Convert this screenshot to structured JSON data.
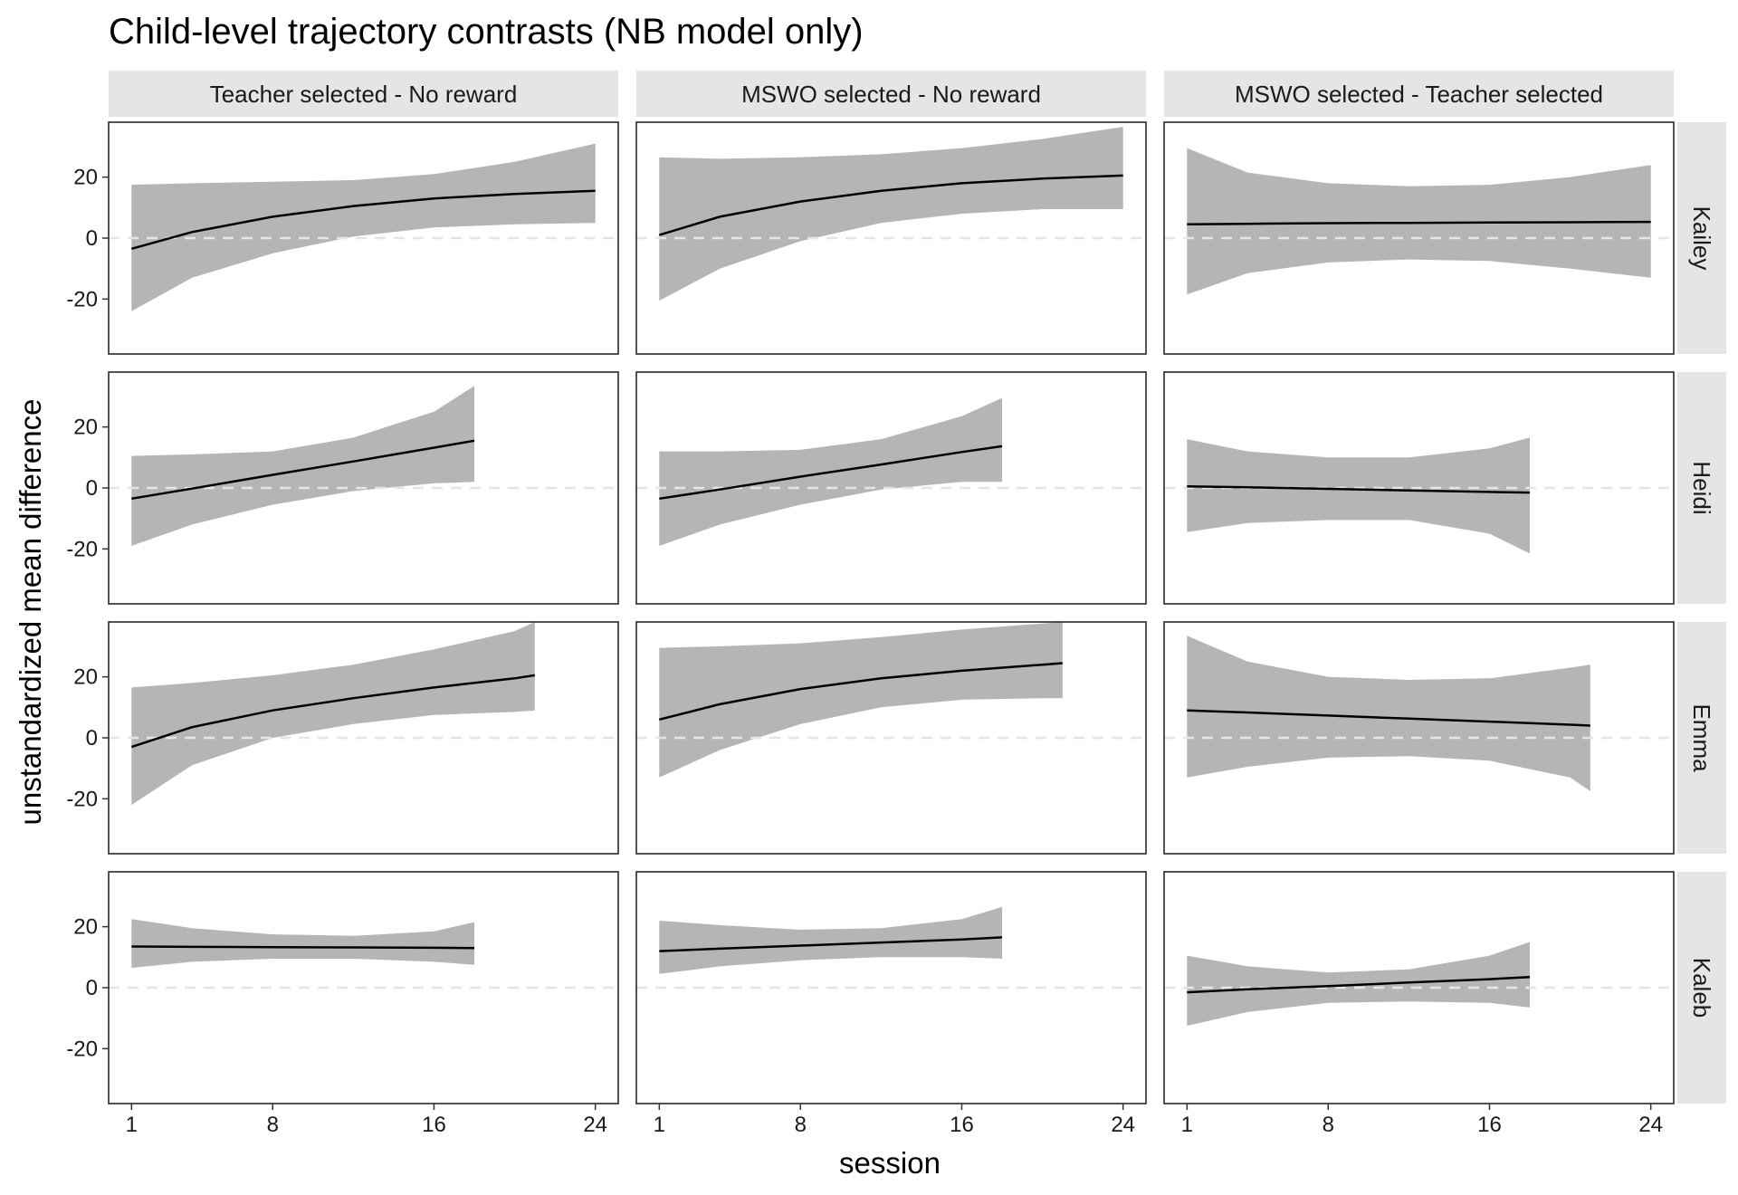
{
  "chart_data": {
    "type": "line",
    "title": "Child-level trajectory contrasts (NB model only)",
    "xlabel": "session",
    "ylabel": "unstandardized mean difference",
    "xlim": [
      1,
      24
    ],
    "ylim": [
      -38,
      38
    ],
    "x_ticks": [
      1,
      8,
      16,
      24
    ],
    "y_ticks": [
      -20,
      0,
      20
    ],
    "reference_line": 0,
    "columns": [
      "Teacher selected - No reward",
      "MSWO selected - No reward",
      "MSWO selected - Teacher selected"
    ],
    "rows": [
      "Kailey",
      "Heidi",
      "Emma",
      "Kaleb"
    ],
    "series_style": {
      "line_color": "#000000",
      "band_color": "#b5b5b5",
      "strip_color": "#e5e5e5",
      "zero_line_color": "#e5e5e5"
    },
    "panels": [
      {
        "row": "Kailey",
        "column": "Teacher selected - No reward",
        "x": [
          1,
          4,
          8,
          12,
          16,
          20,
          24
        ],
        "estimate": [
          -3.5,
          2.0,
          7.0,
          10.5,
          13.0,
          14.5,
          15.5
        ],
        "lower": [
          -24.0,
          -13.0,
          -5.0,
          0.5,
          3.5,
          4.5,
          5.0
        ],
        "upper": [
          17.5,
          18.0,
          18.5,
          19.0,
          21.0,
          25.0,
          31.0
        ]
      },
      {
        "row": "Kailey",
        "column": "MSWO selected - No reward",
        "x": [
          1,
          4,
          8,
          12,
          16,
          20,
          24
        ],
        "estimate": [
          1.0,
          7.0,
          12.0,
          15.5,
          18.0,
          19.5,
          20.5
        ],
        "lower": [
          -20.5,
          -10.0,
          -1.0,
          5.0,
          8.0,
          9.5,
          9.5
        ],
        "upper": [
          26.5,
          26.0,
          26.5,
          27.5,
          29.5,
          32.5,
          36.5
        ]
      },
      {
        "row": "Kailey",
        "column": "MSWO selected - Teacher selected",
        "x": [
          1,
          4,
          8,
          12,
          16,
          20,
          24
        ],
        "estimate": [
          4.5,
          4.7,
          4.9,
          5.0,
          5.1,
          5.2,
          5.3
        ],
        "lower": [
          -18.5,
          -11.5,
          -8.0,
          -7.0,
          -7.5,
          -10.0,
          -13.0
        ],
        "upper": [
          29.5,
          21.5,
          18.0,
          17.0,
          17.5,
          20.0,
          24.0
        ]
      },
      {
        "row": "Heidi",
        "column": "Teacher selected - No reward",
        "x": [
          1,
          4,
          8,
          12,
          16,
          18
        ],
        "estimate": [
          -3.5,
          -0.2,
          4.3,
          8.7,
          13.2,
          15.5
        ],
        "lower": [
          -19.0,
          -12.0,
          -5.5,
          -1.0,
          1.5,
          2.0
        ],
        "upper": [
          10.5,
          11.0,
          12.0,
          16.5,
          25.0,
          33.5
        ]
      },
      {
        "row": "Heidi",
        "column": "MSWO selected - No reward",
        "x": [
          1,
          4,
          8,
          12,
          16,
          18
        ],
        "estimate": [
          -3.5,
          -0.5,
          3.7,
          7.7,
          11.8,
          13.7
        ],
        "lower": [
          -19.0,
          -12.0,
          -5.5,
          -0.5,
          2.0,
          2.0
        ],
        "upper": [
          12.0,
          12.0,
          12.5,
          16.0,
          23.5,
          29.5
        ]
      },
      {
        "row": "Heidi",
        "column": "MSWO selected - Teacher selected",
        "x": [
          1,
          4,
          8,
          12,
          16,
          18
        ],
        "estimate": [
          0.5,
          0.2,
          -0.3,
          -0.8,
          -1.3,
          -1.5
        ],
        "lower": [
          -14.5,
          -11.5,
          -10.5,
          -10.5,
          -15.0,
          -21.5
        ],
        "upper": [
          16.0,
          12.0,
          10.0,
          10.0,
          13.0,
          16.5
        ]
      },
      {
        "row": "Emma",
        "column": "Teacher selected - No reward",
        "x": [
          1,
          4,
          8,
          12,
          16,
          20,
          21
        ],
        "estimate": [
          -3.0,
          3.5,
          9.0,
          13.0,
          16.5,
          19.5,
          20.5
        ],
        "lower": [
          -22.0,
          -9.0,
          0.0,
          4.5,
          7.5,
          8.5,
          9.0
        ],
        "upper": [
          16.5,
          18.0,
          20.5,
          24.0,
          29.0,
          35.0,
          38.0
        ]
      },
      {
        "row": "Emma",
        "column": "MSWO selected - No reward",
        "x": [
          1,
          4,
          8,
          12,
          16,
          20,
          21
        ],
        "estimate": [
          6.0,
          11.0,
          16.0,
          19.5,
          22.0,
          24.0,
          24.5
        ],
        "lower": [
          -13.0,
          -4.0,
          4.5,
          10.0,
          12.5,
          13.0,
          13.0
        ],
        "upper": [
          29.5,
          30.0,
          31.0,
          33.0,
          35.5,
          37.5,
          38.0
        ]
      },
      {
        "row": "Emma",
        "column": "MSWO selected - Teacher selected",
        "x": [
          1,
          4,
          8,
          12,
          16,
          20,
          21
        ],
        "estimate": [
          9.0,
          8.3,
          7.3,
          6.3,
          5.3,
          4.3,
          4.0
        ],
        "lower": [
          -13.0,
          -9.5,
          -6.5,
          -6.0,
          -7.5,
          -13.0,
          -17.5
        ],
        "upper": [
          33.5,
          25.0,
          20.0,
          19.0,
          19.5,
          23.0,
          24.0
        ]
      },
      {
        "row": "Kaleb",
        "column": "Teacher selected - No reward",
        "x": [
          1,
          4,
          8,
          12,
          16,
          18
        ],
        "estimate": [
          13.5,
          13.4,
          13.3,
          13.2,
          13.1,
          13.0
        ],
        "lower": [
          6.5,
          8.5,
          9.5,
          9.5,
          8.5,
          7.5
        ],
        "upper": [
          22.5,
          19.5,
          17.5,
          17.0,
          18.5,
          21.5
        ]
      },
      {
        "row": "Kaleb",
        "column": "MSWO selected - No reward",
        "x": [
          1,
          4,
          8,
          12,
          16,
          18
        ],
        "estimate": [
          12.0,
          12.8,
          13.8,
          14.8,
          15.8,
          16.5
        ],
        "lower": [
          4.5,
          7.0,
          9.0,
          10.0,
          10.0,
          9.5
        ],
        "upper": [
          22.0,
          20.5,
          19.0,
          19.5,
          22.5,
          26.5
        ]
      },
      {
        "row": "Kaleb",
        "column": "MSWO selected - Teacher selected",
        "x": [
          1,
          4,
          8,
          12,
          16,
          18
        ],
        "estimate": [
          -1.5,
          -0.5,
          0.5,
          1.7,
          2.8,
          3.5
        ],
        "lower": [
          -12.5,
          -8.0,
          -5.0,
          -4.5,
          -5.0,
          -6.5
        ],
        "upper": [
          10.5,
          7.0,
          5.0,
          6.0,
          10.5,
          15.0
        ]
      }
    ]
  }
}
